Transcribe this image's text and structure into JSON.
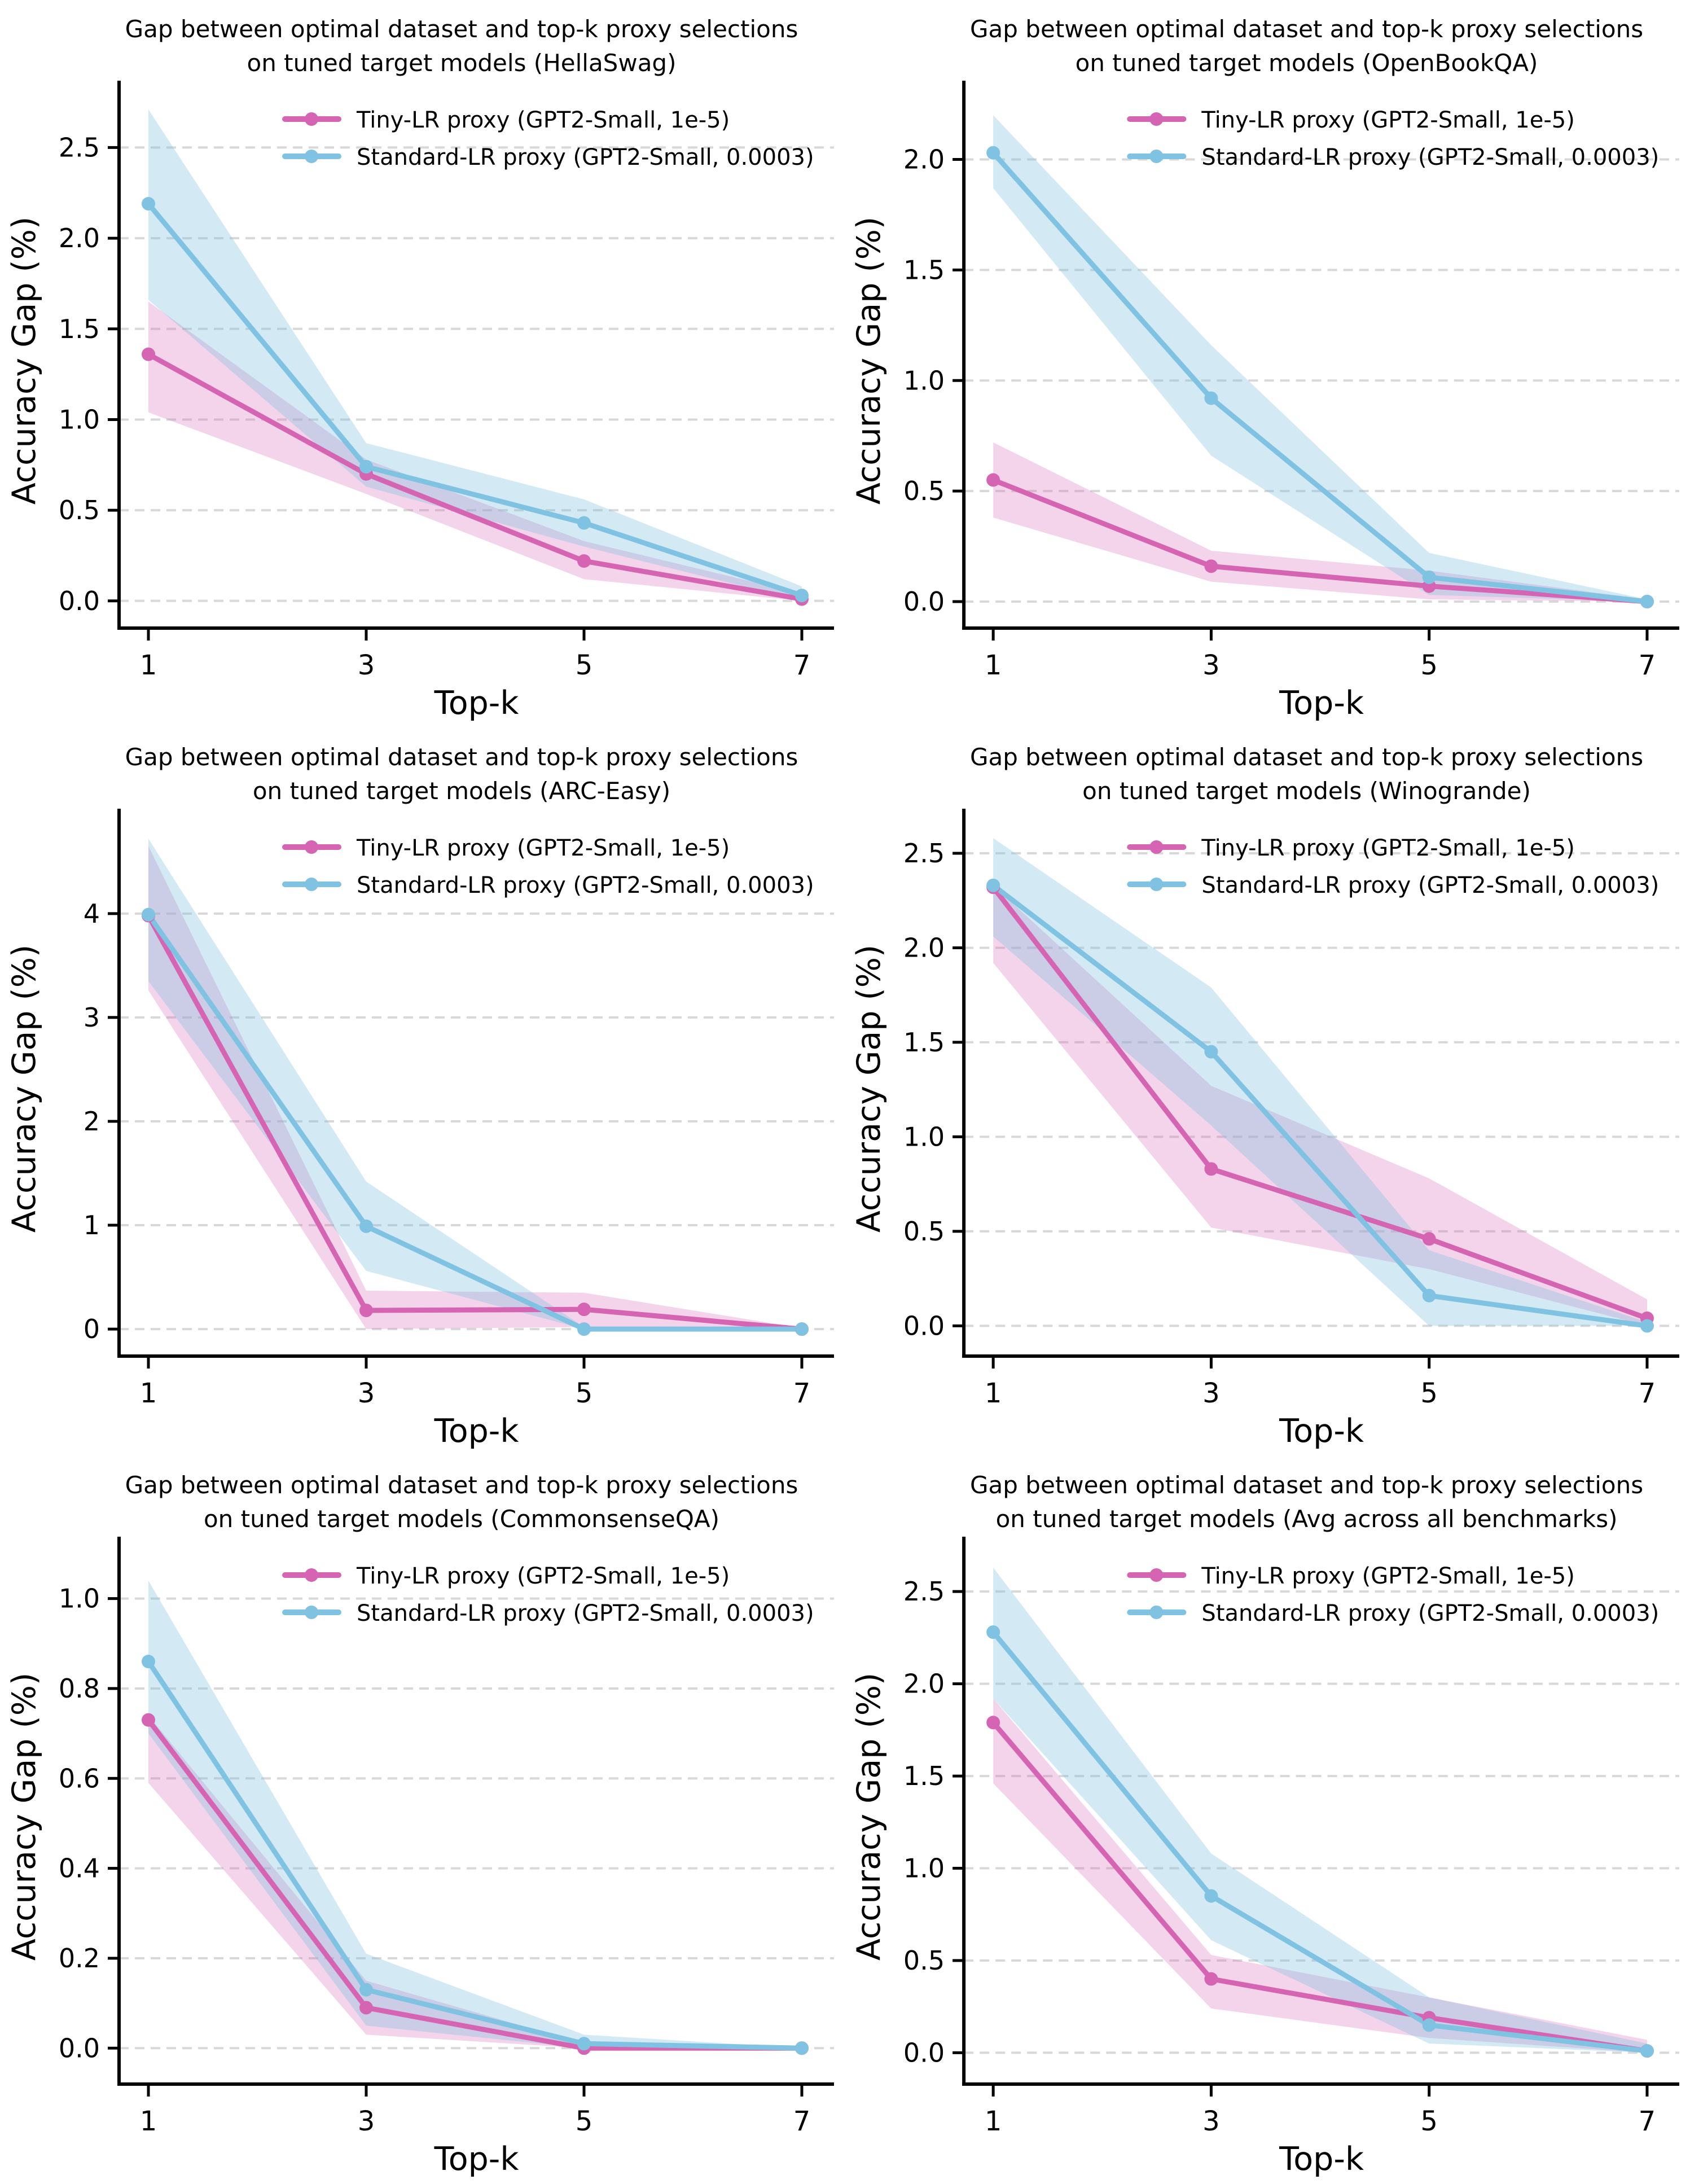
{
  "page": {
    "background": "#ffffff"
  },
  "colors": {
    "tiny_line": "#d565b2",
    "standard_line": "#7fc2e2",
    "tiny_band": "#d565b2",
    "standard_band": "#7fc2e2",
    "grid_line": "#d8d8d8",
    "axis": "#000000",
    "text": "#000000"
  },
  "legend": {
    "tiny_label": "Tiny-LR proxy (GPT2-Small, 1e-5)",
    "standard_label": "Standard-LR proxy (GPT2-Small, 0.0003)"
  },
  "chart_data": [
    {
      "type": "line",
      "benchmark": "HellaSwag",
      "title_line1": "Gap between optimal dataset and top-k proxy selections",
      "title_line2": "on tuned target models (HellaSwag)",
      "xlabel": "Top-k",
      "ylabel": "Accuracy Gap (%)",
      "x": [
        1,
        3,
        5,
        7
      ],
      "xtick_labels": [
        "1",
        "3",
        "5",
        "7"
      ],
      "ylim": [
        -0.15,
        2.8
      ],
      "yticks": [
        0.0,
        0.5,
        1.0,
        1.5,
        2.0,
        2.5
      ],
      "ytick_labels": [
        "0.0",
        "0.5",
        "1.0",
        "1.5",
        "2.0",
        "2.5"
      ],
      "grid": true,
      "legend_position": "upper center",
      "series": [
        {
          "name": "Tiny-LR proxy (GPT2-Small, 1e-5)",
          "color": "#d565b2",
          "values": [
            1.36,
            0.7,
            0.22,
            0.01
          ],
          "band_low": [
            1.04,
            0.59,
            0.12,
            0.0
          ],
          "band_high": [
            1.65,
            0.78,
            0.33,
            0.04
          ]
        },
        {
          "name": "Standard-LR proxy (GPT2-Small, 0.0003)",
          "color": "#7fc2e2",
          "values": [
            2.19,
            0.74,
            0.43,
            0.03
          ],
          "band_low": [
            1.66,
            0.63,
            0.3,
            0.0
          ],
          "band_high": [
            2.71,
            0.87,
            0.56,
            0.08
          ]
        }
      ]
    },
    {
      "type": "line",
      "benchmark": "OpenBookQA",
      "title_line1": "Gap between optimal dataset and top-k proxy selections",
      "title_line2": "on tuned target models (OpenBookQA)",
      "xlabel": "Top-k",
      "ylabel": "Accuracy Gap (%)",
      "x": [
        1,
        3,
        5,
        7
      ],
      "xtick_labels": [
        "1",
        "3",
        "5",
        "7"
      ],
      "ylim": [
        -0.12,
        2.3
      ],
      "yticks": [
        0.0,
        0.5,
        1.0,
        1.5,
        2.0
      ],
      "ytick_labels": [
        "0.0",
        "0.5",
        "1.0",
        "1.5",
        "2.0"
      ],
      "grid": true,
      "legend_position": "upper center",
      "series": [
        {
          "name": "Tiny-LR proxy (GPT2-Small, 1e-5)",
          "color": "#d565b2",
          "values": [
            0.55,
            0.16,
            0.07,
            0.0
          ],
          "band_low": [
            0.38,
            0.09,
            0.01,
            0.0
          ],
          "band_high": [
            0.72,
            0.23,
            0.14,
            0.01
          ]
        },
        {
          "name": "Standard-LR proxy (GPT2-Small, 0.0003)",
          "color": "#7fc2e2",
          "values": [
            2.03,
            0.92,
            0.11,
            0.0
          ],
          "band_low": [
            1.87,
            0.66,
            0.03,
            0.0
          ],
          "band_high": [
            2.2,
            1.16,
            0.22,
            0.01
          ]
        }
      ]
    },
    {
      "type": "line",
      "benchmark": "ARC-Easy",
      "title_line1": "Gap between optimal dataset and top-k proxy selections",
      "title_line2": "on tuned target models (ARC-Easy)",
      "xlabel": "Top-k",
      "ylabel": "Accuracy Gap (%)",
      "x": [
        1,
        3,
        5,
        7
      ],
      "xtick_labels": [
        "1",
        "3",
        "5",
        "7"
      ],
      "ylim": [
        -0.26,
        4.89
      ],
      "yticks": [
        0,
        1,
        2,
        3,
        4
      ],
      "ytick_labels": [
        "0",
        "1",
        "2",
        "3",
        "4"
      ],
      "grid": true,
      "legend_position": "upper center",
      "series": [
        {
          "name": "Tiny-LR proxy (GPT2-Small, 1e-5)",
          "color": "#d565b2",
          "values": [
            3.98,
            0.18,
            0.19,
            0.0
          ],
          "band_low": [
            3.26,
            0.0,
            0.02,
            0.0
          ],
          "band_high": [
            4.65,
            0.37,
            0.35,
            0.01
          ]
        },
        {
          "name": "Standard-LR proxy (GPT2-Small, 0.0003)",
          "color": "#7fc2e2",
          "values": [
            3.99,
            0.99,
            0.0,
            0.0
          ],
          "band_low": [
            3.35,
            0.56,
            0.0,
            0.0
          ],
          "band_high": [
            4.72,
            1.42,
            0.02,
            0.0
          ]
        }
      ]
    },
    {
      "type": "line",
      "benchmark": "Winogrande",
      "title_line1": "Gap between optimal dataset and top-k proxy selections",
      "title_line2": "on tuned target models (Winogrande)",
      "xlabel": "Top-k",
      "ylabel": "Accuracy Gap (%)",
      "x": [
        1,
        3,
        5,
        7
      ],
      "xtick_labels": [
        "1",
        "3",
        "5",
        "7"
      ],
      "ylim": [
        -0.16,
        2.67
      ],
      "yticks": [
        0.0,
        0.5,
        1.0,
        1.5,
        2.0,
        2.5
      ],
      "ytick_labels": [
        "0.0",
        "0.5",
        "1.0",
        "1.5",
        "2.0",
        "2.5"
      ],
      "grid": true,
      "legend_position": "upper center",
      "series": [
        {
          "name": "Tiny-LR proxy (GPT2-Small, 1e-5)",
          "color": "#d565b2",
          "values": [
            2.32,
            0.83,
            0.46,
            0.04
          ],
          "band_low": [
            1.92,
            0.52,
            0.3,
            0.0
          ],
          "band_high": [
            2.33,
            1.27,
            0.78,
            0.14
          ]
        },
        {
          "name": "Standard-LR proxy (GPT2-Small, 0.0003)",
          "color": "#7fc2e2",
          "values": [
            2.33,
            1.45,
            0.16,
            0.0
          ],
          "band_low": [
            2.06,
            1.06,
            0.0,
            0.0
          ],
          "band_high": [
            2.58,
            1.79,
            0.4,
            0.02
          ]
        }
      ]
    },
    {
      "type": "line",
      "benchmark": "CommonsenseQA",
      "title_line1": "Gap between optimal dataset and top-k proxy selections",
      "title_line2": "on tuned target models (CommonsenseQA)",
      "xlabel": "Top-k",
      "ylabel": "Accuracy Gap (%)",
      "x": [
        1,
        3,
        5,
        7
      ],
      "xtick_labels": [
        "1",
        "3",
        "5",
        "7"
      ],
      "ylim": [
        -0.08,
        1.11
      ],
      "yticks": [
        0.0,
        0.2,
        0.4,
        0.6,
        0.8,
        1.0
      ],
      "ytick_labels": [
        "0.0",
        "0.2",
        "0.4",
        "0.6",
        "0.8",
        "1.0"
      ],
      "grid": true,
      "legend_position": "upper center",
      "series": [
        {
          "name": "Tiny-LR proxy (GPT2-Small, 1e-5)",
          "color": "#d565b2",
          "values": [
            0.73,
            0.09,
            0.0,
            0.0
          ],
          "band_low": [
            0.59,
            0.03,
            0.0,
            0.0
          ],
          "band_high": [
            0.74,
            0.15,
            0.01,
            0.0
          ]
        },
        {
          "name": "Standard-LR proxy (GPT2-Small, 0.0003)",
          "color": "#7fc2e2",
          "values": [
            0.86,
            0.13,
            0.01,
            0.0
          ],
          "band_low": [
            0.7,
            0.05,
            0.0,
            0.0
          ],
          "band_high": [
            1.04,
            0.21,
            0.03,
            0.0
          ]
        }
      ]
    },
    {
      "type": "line",
      "benchmark": "Avg across all benchmarks",
      "title_line1": "Gap between optimal dataset and top-k proxy selections",
      "title_line2": "on tuned target models (Avg across all benchmarks)",
      "xlabel": "Top-k",
      "ylabel": "Accuracy Gap (%)",
      "x": [
        1,
        3,
        5,
        7
      ],
      "xtick_labels": [
        "1",
        "3",
        "5",
        "7"
      ],
      "ylim": [
        -0.17,
        2.73
      ],
      "yticks": [
        0.0,
        0.5,
        1.0,
        1.5,
        2.0,
        2.5
      ],
      "ytick_labels": [
        "0.0",
        "0.5",
        "1.0",
        "1.5",
        "2.0",
        "2.5"
      ],
      "grid": true,
      "legend_position": "upper center",
      "series": [
        {
          "name": "Tiny-LR proxy (GPT2-Small, 1e-5)",
          "color": "#d565b2",
          "values": [
            1.79,
            0.4,
            0.19,
            0.01
          ],
          "band_low": [
            1.46,
            0.24,
            0.08,
            0.0
          ],
          "band_high": [
            1.92,
            0.53,
            0.3,
            0.07
          ]
        },
        {
          "name": "Standard-LR proxy (GPT2-Small, 0.0003)",
          "color": "#7fc2e2",
          "values": [
            2.28,
            0.85,
            0.15,
            0.01
          ],
          "band_low": [
            1.92,
            0.61,
            0.05,
            0.0
          ],
          "band_high": [
            2.63,
            1.08,
            0.3,
            0.05
          ]
        }
      ]
    }
  ]
}
